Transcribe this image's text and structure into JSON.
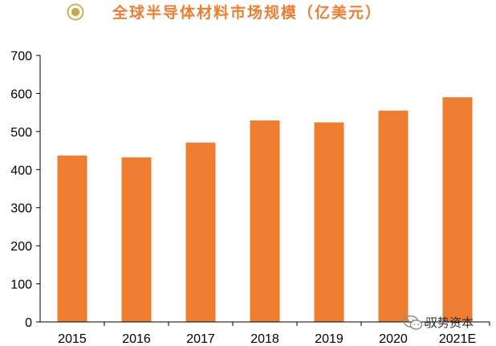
{
  "colors": {
    "bar": "#ED7D31",
    "title": "#ED7D31",
    "icon": "#C9A84C",
    "axis": "#000000"
  },
  "header": {
    "icon_name": "target-bullet-icon",
    "title": "全球半导体材料市场规模（亿美元）"
  },
  "watermark": {
    "icon_name": "wechat-logo-icon",
    "text": "驭势资本"
  },
  "chart_data": {
    "type": "bar",
    "title": "全球半导体材料市场规模（亿美元）",
    "categories": [
      "2015",
      "2016",
      "2017",
      "2018",
      "2019",
      "2020",
      "2021E"
    ],
    "values": [
      437,
      432,
      471,
      529,
      524,
      555,
      590
    ],
    "xlabel": "",
    "ylabel": "",
    "ylim": [
      0,
      700
    ],
    "yticks": [
      0,
      100,
      200,
      300,
      400,
      500,
      600,
      700
    ],
    "grid": false,
    "legend": "none"
  }
}
